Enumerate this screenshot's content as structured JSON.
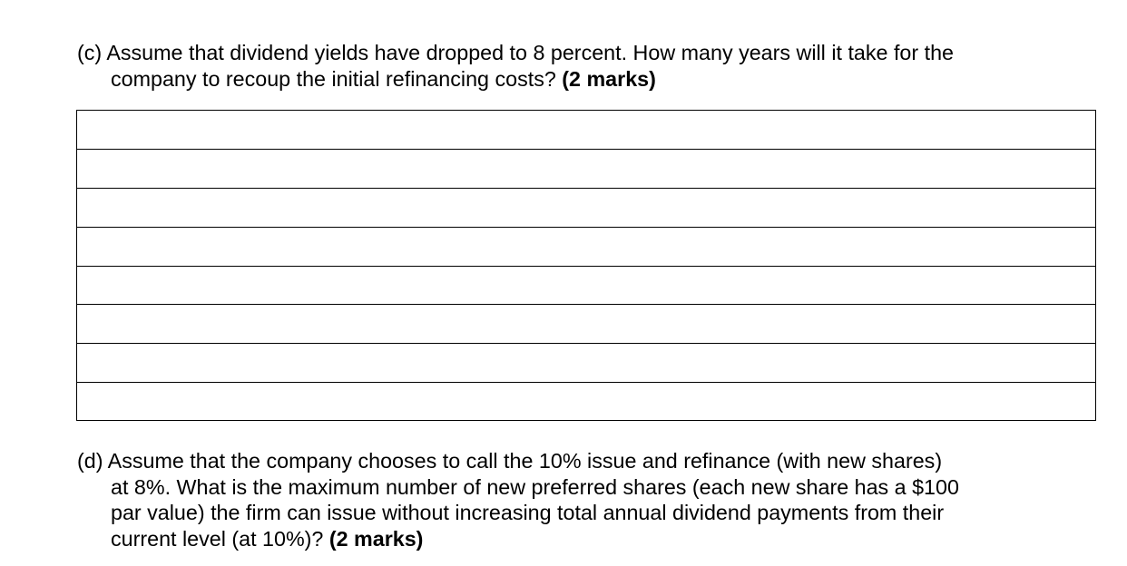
{
  "question_c": {
    "lines": [
      "(c) Assume that dividend yields have dropped to 8 percent.  How many years will it take for the",
      "company to recoup the initial refinancing costs?  "
    ],
    "marks": "(2 marks)"
  },
  "answer_box": {
    "line_count": 8
  },
  "question_d": {
    "lines": [
      "(d) Assume that the company chooses to call the 10% issue and refinance (with new shares)",
      "at 8%.  What is the maximum number of new preferred shares (each new share has a $100",
      "par value) the firm can issue without increasing total annual dividend payments from their",
      "current level (at 10%)?  "
    ],
    "marks": "(2 marks)"
  }
}
